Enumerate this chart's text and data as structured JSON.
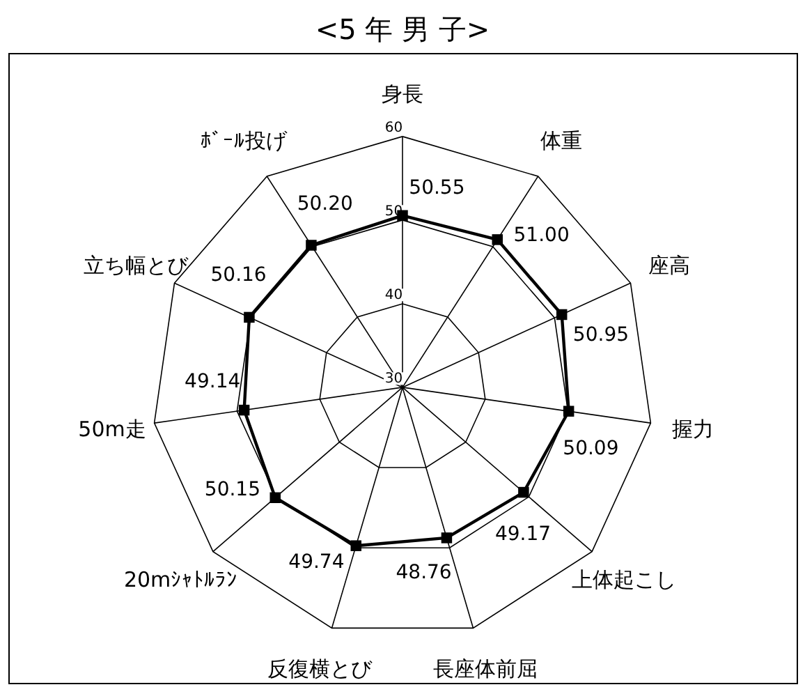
{
  "chart_data": {
    "type": "radar",
    "title": "<5 年 男 子>",
    "categories": [
      "身長",
      "体重",
      "座高",
      "握力",
      "上体起こし",
      "長座体前屈",
      "反復横とび",
      "20mｼｬﾄﾙﾗﾝ",
      "50m走",
      "立ち幅とび",
      "ﾎﾞｰﾙ投げ"
    ],
    "series": [
      {
        "color": "#000000",
        "values": [
          50.55,
          51.0,
          50.95,
          50.09,
          49.17,
          48.76,
          49.74,
          50.15,
          49.14,
          50.16,
          50.2
        ],
        "value_labels": [
          "50.55",
          "51.00",
          "50.95",
          "50.09",
          "49.17",
          "48.76",
          "49.74",
          "50.15",
          "49.14",
          "50.16",
          "50.20"
        ]
      }
    ],
    "ylim": [
      30,
      60
    ],
    "yticks": [
      30,
      40,
      50,
      60
    ],
    "grid": true,
    "marker": "square",
    "line_style": "solid"
  }
}
